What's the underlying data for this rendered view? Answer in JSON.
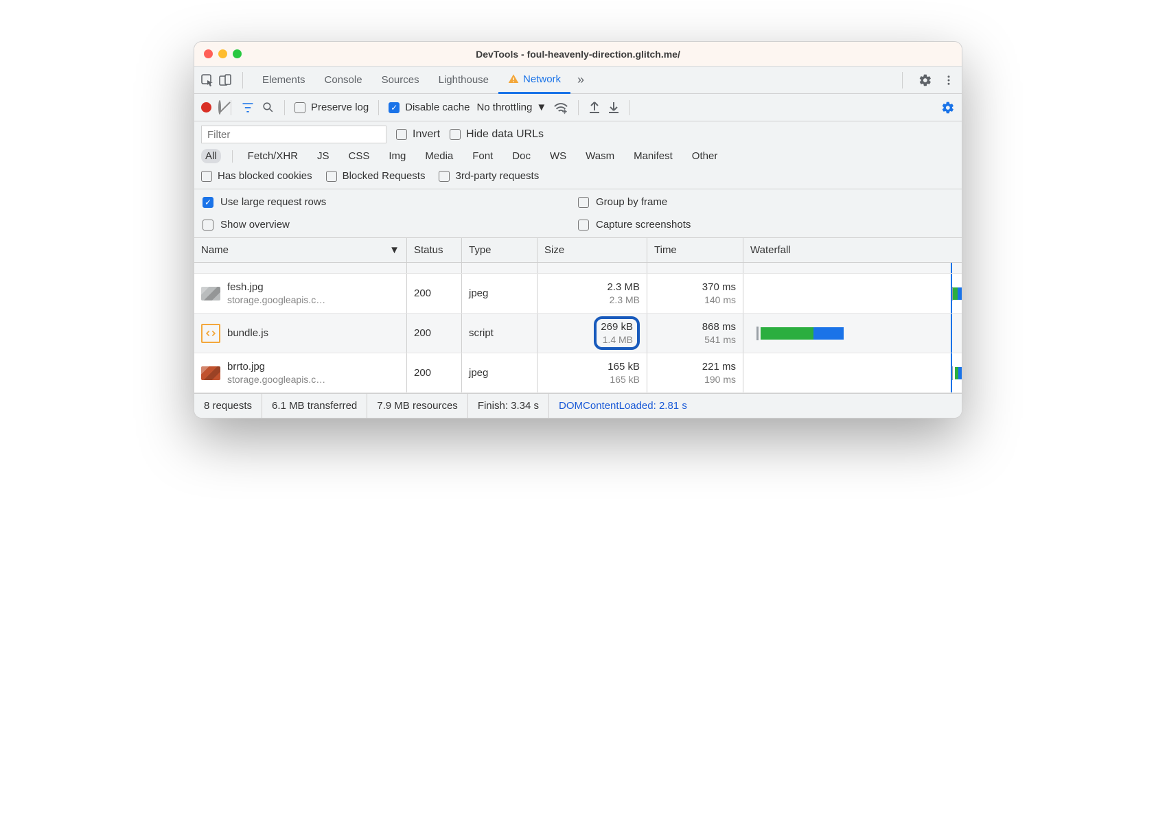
{
  "window": {
    "title": "DevTools - foul-heavenly-direction.glitch.me/"
  },
  "tabs": {
    "items": [
      "Elements",
      "Console",
      "Sources",
      "Lighthouse",
      "Network"
    ],
    "active_index": 4,
    "overflow_glyph": "»",
    "warning_icon_tab_index": 4
  },
  "toolbar": {
    "preserve_log": {
      "label": "Preserve log",
      "checked": false
    },
    "disable_cache": {
      "label": "Disable cache",
      "checked": true
    },
    "throttling_label": "No throttling"
  },
  "filters": {
    "placeholder": "Filter",
    "invert": {
      "label": "Invert",
      "checked": false
    },
    "hide_data_urls": {
      "label": "Hide data URLs",
      "checked": false
    },
    "types": [
      "All",
      "Fetch/XHR",
      "JS",
      "CSS",
      "Img",
      "Media",
      "Font",
      "Doc",
      "WS",
      "Wasm",
      "Manifest",
      "Other"
    ],
    "active_type_index": 0,
    "blocked_cookies": {
      "label": "Has blocked cookies",
      "checked": false
    },
    "blocked_requests": {
      "label": "Blocked Requests",
      "checked": false
    },
    "third_party": {
      "label": "3rd-party requests",
      "checked": false
    }
  },
  "settings": {
    "use_large_rows": {
      "label": "Use large request rows",
      "checked": true
    },
    "group_by_frame": {
      "label": "Group by frame",
      "checked": false
    },
    "show_overview": {
      "label": "Show overview",
      "checked": false
    },
    "capture_screenshots": {
      "label": "Capture screenshots",
      "checked": false
    }
  },
  "table": {
    "columns": [
      "Name",
      "Status",
      "Type",
      "Size",
      "Time",
      "Waterfall"
    ],
    "rows": [
      {
        "icon_bg": "#b9bcbd",
        "icon_kind": "image-thumb",
        "name": "fesh.jpg",
        "host": "storage.googleapis.c…",
        "status": "200",
        "type": "jpeg",
        "size_top": "2.3 MB",
        "size_bottom": "2.3 MB",
        "time_top": "370 ms",
        "time_bottom": "140 ms",
        "highlight_size": false,
        "row_bg": "odd",
        "wf": {
          "notch_pct": 95,
          "bars": [
            {
              "left_pct": 96,
              "width_pct": 2,
              "color": "#2bae3f"
            },
            {
              "left_pct": 98,
              "width_pct": 2,
              "color": "#1a73e8"
            }
          ]
        }
      },
      {
        "icon_bg": "#ffffff",
        "icon_kind": "script",
        "name": "bundle.js",
        "host": "",
        "status": "200",
        "type": "script",
        "size_top": "269 kB",
        "size_bottom": "1.4 MB",
        "time_top": "868 ms",
        "time_bottom": "541 ms",
        "highlight_size": true,
        "row_bg": "even",
        "wf": {
          "notch_pct": 6,
          "bars": [
            {
              "left_pct": 8,
              "width_pct": 24,
              "color": "#2bae3f"
            },
            {
              "left_pct": 32,
              "width_pct": 14,
              "color": "#1a73e8"
            }
          ]
        }
      },
      {
        "icon_bg": "#c0522e",
        "icon_kind": "image-thumb",
        "name": "brrto.jpg",
        "host": "storage.googleapis.c…",
        "status": "200",
        "type": "jpeg",
        "size_top": "165 kB",
        "size_bottom": "165 kB",
        "time_top": "221 ms",
        "time_bottom": "190 ms",
        "highlight_size": false,
        "row_bg": "odd",
        "wf": {
          "notch_pct": 95,
          "bars": [
            {
              "left_pct": 97,
              "width_pct": 1.5,
              "color": "#2bae3f"
            },
            {
              "left_pct": 98.5,
              "width_pct": 1.5,
              "color": "#1a73e8"
            }
          ]
        }
      }
    ],
    "wf_marker_line_pct": 95
  },
  "status": {
    "requests": "8 requests",
    "transferred": "6.1 MB transferred",
    "resources": "7.9 MB resources",
    "finish": "Finish: 3.34 s",
    "dom_content_loaded": "DOMContentLoaded: 2.81 s"
  },
  "colors": {
    "accent": "#1a73e8",
    "warning": "#f3a73b",
    "record": "#d93025"
  }
}
